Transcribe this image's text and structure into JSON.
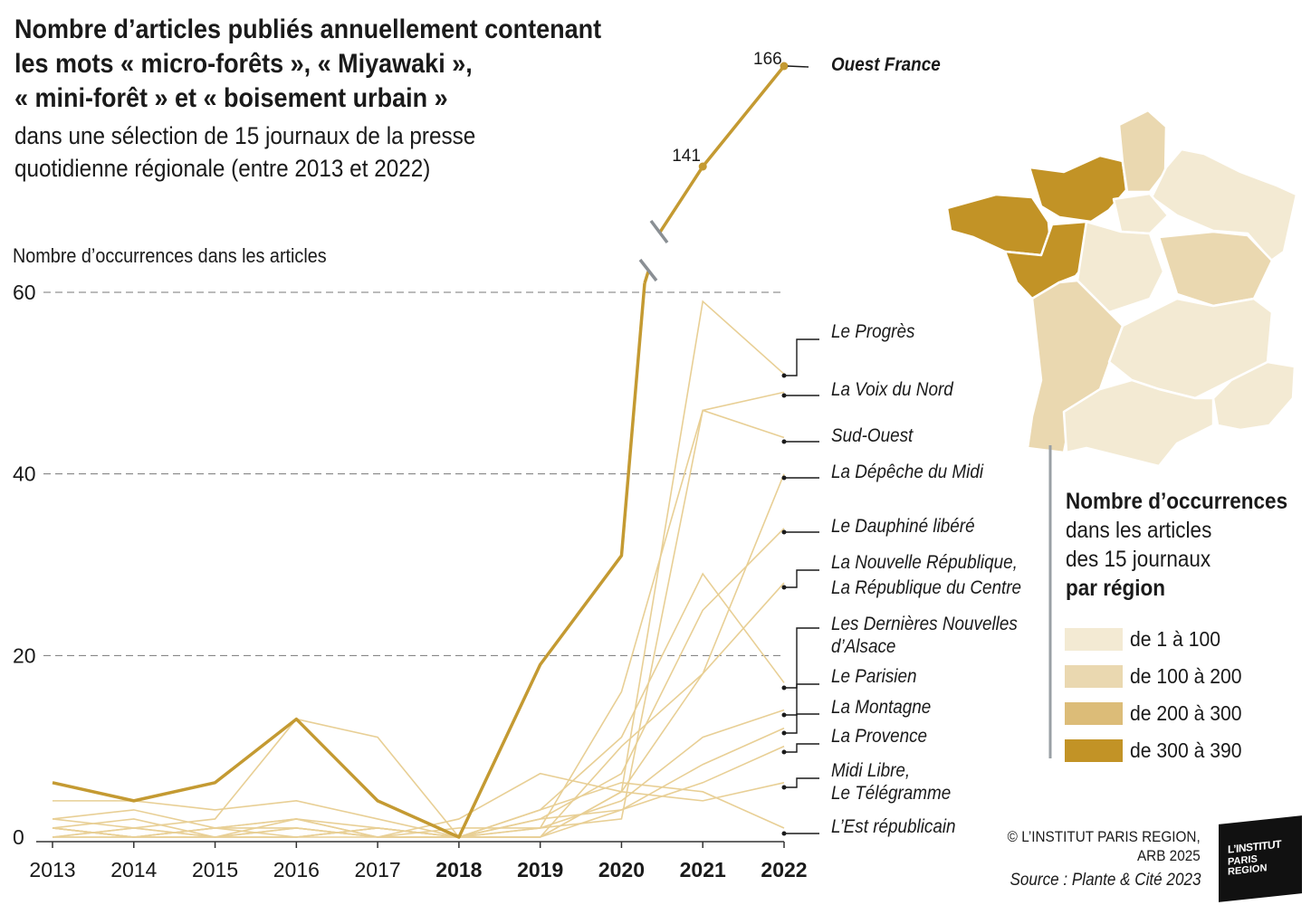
{
  "title_lines": [
    "Nombre d’articles publiés annuellement contenant",
    "les mots « micro-forêts », « Miyawaki »,",
    "« mini-forêt » et « boisement urbain »"
  ],
  "subtitle_lines": [
    "dans une sélection de 15 journaux de la presse",
    "quotidienne régionale (entre 2013 et 2022)"
  ],
  "colors": {
    "ouest_france": "#c49a32",
    "other_lines": "#e8cf95",
    "gridline": "#777777",
    "map_1_100": "#f3ead3",
    "map_100_200": "#ead8b0",
    "map_200_300": "#dcbc78",
    "map_300_390": "#c29326",
    "map_border": "#ffffff"
  },
  "chart_data": {
    "type": "line",
    "y_axis_title": "Nombre d’occurrences dans les articles",
    "x": [
      2013,
      2014,
      2015,
      2016,
      2017,
      2018,
      2019,
      2020,
      2021,
      2022
    ],
    "x_bold_from": 2018,
    "yticks": [
      0,
      20,
      40,
      60
    ],
    "ylim": [
      0,
      60
    ],
    "axis_break": true,
    "highlight_series": {
      "name": "Ouest France",
      "values": [
        6,
        4,
        6,
        13,
        4,
        0,
        19,
        31,
        141,
        166
      ],
      "data_labels": {
        "2021": "141",
        "2022": "166"
      }
    },
    "series": [
      {
        "name": "Le Progrès",
        "values": [
          1,
          0,
          1,
          0,
          1,
          0,
          0,
          5,
          59,
          51
        ]
      },
      {
        "name": "La Voix du Nord",
        "values": [
          2,
          1,
          2,
          13,
          11,
          0,
          1,
          16,
          47,
          49
        ]
      },
      {
        "name": "Sud-Ouest",
        "values": [
          1,
          0,
          0,
          1,
          0,
          1,
          1,
          2,
          47,
          44
        ]
      },
      {
        "name": "La Dépêche du Midi",
        "values": [
          0,
          0,
          0,
          1,
          0,
          0,
          0,
          5,
          18,
          40
        ]
      },
      {
        "name": "Le Dauphiné libéré",
        "values": [
          0,
          1,
          0,
          0,
          0,
          0,
          2,
          7,
          25,
          34
        ]
      },
      {
        "name": "La Nouvelle République, La République du Centre",
        "values": [
          1,
          0,
          1,
          2,
          0,
          0,
          0,
          10,
          18,
          28
        ]
      },
      {
        "name": "Les Dernières Nouvelles d’Alsace",
        "values": [
          2,
          3,
          1,
          2,
          1,
          0,
          3,
          11,
          29,
          17
        ]
      },
      {
        "name": "Le Parisien",
        "values": [
          4,
          4,
          3,
          4,
          2,
          0,
          1,
          4,
          11,
          14
        ]
      },
      {
        "name": "La Montagne",
        "values": [
          0,
          1,
          0,
          0,
          1,
          0,
          0,
          3,
          8,
          12
        ]
      },
      {
        "name": "La Provence",
        "values": [
          1,
          2,
          0,
          2,
          0,
          0,
          2,
          3,
          6,
          10
        ]
      },
      {
        "name": "Midi Libre, Le Télégramme",
        "values": [
          0,
          0,
          1,
          1,
          0,
          2,
          7,
          5,
          4,
          6
        ]
      },
      {
        "name": "L’Est républicain",
        "values": [
          1,
          0,
          0,
          0,
          1,
          0,
          3,
          6,
          5,
          1
        ]
      }
    ],
    "labels": [
      {
        "lines": [
          "Ouest France"
        ],
        "bold": true
      },
      {
        "lines": [
          "Le Progrès"
        ]
      },
      {
        "lines": [
          "La Voix du Nord"
        ]
      },
      {
        "lines": [
          "Sud-Ouest"
        ]
      },
      {
        "lines": [
          "La Dépêche du Midi"
        ]
      },
      {
        "lines": [
          "Le Dauphiné libéré"
        ]
      },
      {
        "lines": [
          "La Nouvelle République,",
          "La République du Centre"
        ]
      },
      {
        "lines": [
          "Les Dernières Nouvelles",
          "d’Alsace"
        ]
      },
      {
        "lines": [
          "Le Parisien"
        ]
      },
      {
        "lines": [
          "La Montagne"
        ]
      },
      {
        "lines": [
          "La Provence"
        ]
      },
      {
        "lines": [
          "Midi Libre,",
          "Le Télégramme"
        ]
      },
      {
        "lines": [
          "L’Est républicain"
        ]
      }
    ]
  },
  "map": {
    "title": "Carte des régions de France",
    "regions": [
      {
        "name": "Bretagne",
        "class": "de 300 à 390"
      },
      {
        "name": "Normandie",
        "class": "de 300 à 390"
      },
      {
        "name": "Pays de la Loire",
        "class": "de 300 à 390"
      },
      {
        "name": "Hauts-de-France",
        "class": "de 100 à 200"
      },
      {
        "name": "Grand Est",
        "class": "de 1 à 100"
      },
      {
        "name": "Île-de-France",
        "class": "de 1 à 100"
      },
      {
        "name": "Centre-Val de Loire",
        "class": "de 1 à 100"
      },
      {
        "name": "Bourgogne-Franche-Comté",
        "class": "de 100 à 200"
      },
      {
        "name": "Nouvelle-Aquitaine",
        "class": "de 100 à 200"
      },
      {
        "name": "Auvergne-Rhône-Alpes",
        "class": "de 1 à 100"
      },
      {
        "name": "Occitanie",
        "class": "de 1 à 100"
      },
      {
        "name": "Provence-Alpes-Côte d’Azur",
        "class": "de 1 à 100"
      }
    ]
  },
  "legend": {
    "title_line1": "Nombre d’occurrences",
    "title_line2": "dans les articles",
    "title_line3": "des 15 journaux",
    "title_line4": "par région",
    "items": [
      {
        "label": "de 1 à 100",
        "color_key": "map_1_100"
      },
      {
        "label": "de 100 à 200",
        "color_key": "map_100_200"
      },
      {
        "label": "de 200 à 300",
        "color_key": "map_200_300"
      },
      {
        "label": "de 300 à 390",
        "color_key": "map_300_390"
      }
    ]
  },
  "credits": {
    "copyright_line1": "© L’INSTITUT PARIS REGION,",
    "copyright_line2": "ARB 2025",
    "source": "Source : Plante & Cité 2023",
    "logo_line1": "L’INSTITUT",
    "logo_line2": "PARIS",
    "logo_line3": "REGION"
  }
}
